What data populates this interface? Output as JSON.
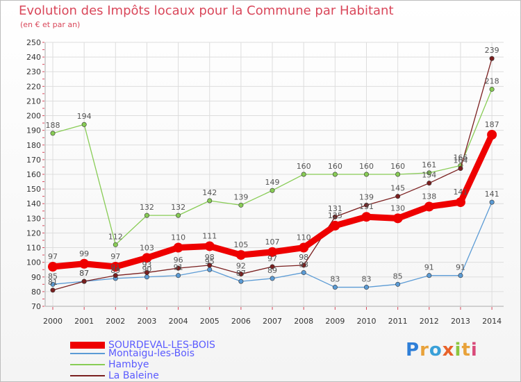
{
  "header": {
    "title": "Evolution des Impôts locaux pour la Commune par Habitant",
    "subtitle": "(en € et par an)"
  },
  "logo": {
    "text": "Proxiti"
  },
  "colors": {
    "background": "#ffffff",
    "grid": "#dddddd",
    "title": "#d9475a",
    "legend_text": "#5a5aff"
  },
  "chart_data": {
    "type": "line",
    "title": "Evolution des Impôts locaux pour la Commune par Habitant",
    "subtitle": "(en € et par an)",
    "xlabel": "",
    "ylabel": "",
    "ylim": [
      70,
      250
    ],
    "ytick_step": 10,
    "grid": true,
    "legend_position": "bottom-left",
    "x": [
      "2000",
      "2001",
      "2002",
      "2003",
      "2004",
      "2005",
      "2006",
      "2007",
      "2008",
      "2009",
      "2010",
      "2011",
      "2012",
      "2013",
      "2014"
    ],
    "series": [
      {
        "name": "SOURDEVAL-LES-BOIS",
        "color": "#ee0000",
        "values": [
          97,
          99,
          97,
          103,
          110,
          111,
          105,
          107,
          110,
          125,
          131,
          130,
          138,
          141,
          187
        ],
        "labels": [
          "97",
          "99",
          "97",
          "103",
          "110",
          "111",
          "105",
          "107",
          "110",
          "125",
          "131",
          "130",
          "138",
          "141",
          "187"
        ]
      },
      {
        "name": "Montaigu-les-Bois",
        "color": "#5b9bd5",
        "values": [
          85,
          87,
          89,
          90,
          91,
          95,
          87,
          89,
          93,
          83,
          83,
          85,
          91,
          91,
          141
        ],
        "labels": [
          "85",
          "87",
          "89",
          "90",
          "91",
          "95",
          "87",
          "89",
          "93",
          "83",
          "83",
          "85",
          "91",
          "91",
          "141"
        ]
      },
      {
        "name": "Hambye",
        "color": "#88cc55",
        "values": [
          188,
          194,
          112,
          132,
          132,
          142,
          139,
          149,
          160,
          160,
          160,
          160,
          161,
          166,
          218
        ],
        "labels": [
          "188",
          "194",
          "112",
          "132",
          "132",
          "142",
          "139",
          "149",
          "160",
          "160",
          "160",
          "160",
          "161",
          "166",
          "218"
        ]
      },
      {
        "name": "La Baleine",
        "color": "#7a1f1f",
        "values": [
          81,
          87,
          91,
          93,
          96,
          98,
          92,
          97,
          98,
          131,
          139,
          145,
          154,
          164,
          239
        ],
        "labels": [
          "81",
          "87",
          "91",
          "93",
          "96",
          "98",
          "92",
          "97",
          "98",
          "131",
          "139",
          "145",
          "154",
          "164",
          "239"
        ]
      }
    ]
  }
}
